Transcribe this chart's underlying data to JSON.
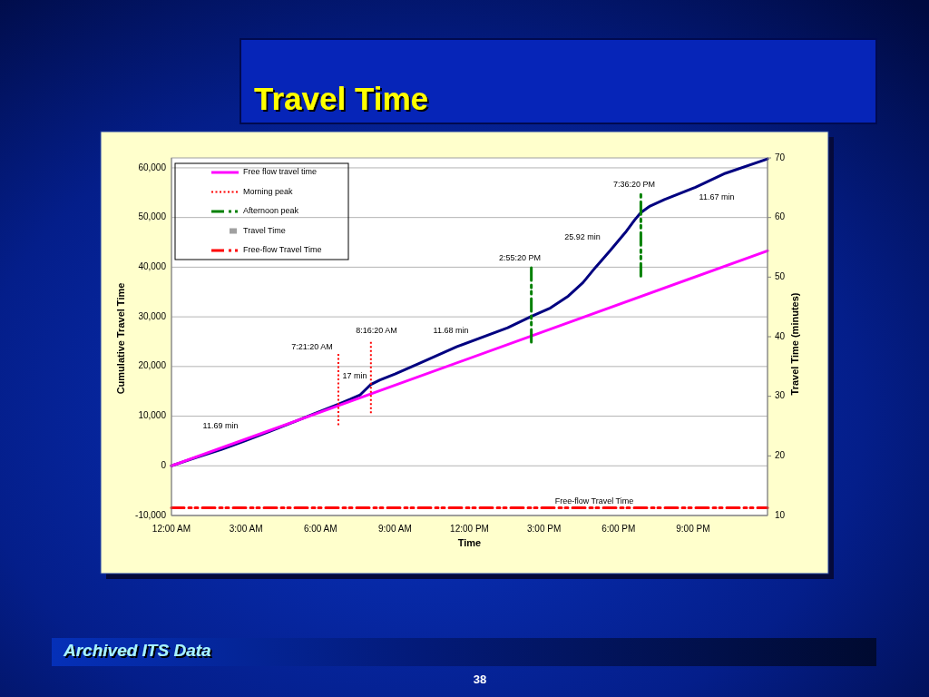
{
  "chart_data": {
    "type": "line",
    "title": "Travel Time",
    "xlabel": "Time",
    "ylabel": "Cumulative Travel Time",
    "y2label": "Travel Time (minutes)",
    "xlim": [
      0,
      24
    ],
    "xticks": [
      {
        "value": 0,
        "label": "12:00 AM"
      },
      {
        "value": 3,
        "label": "3:00 AM"
      },
      {
        "value": 6,
        "label": "6:00 AM"
      },
      {
        "value": 9,
        "label": "9:00 AM"
      },
      {
        "value": 12,
        "label": "12:00 PM"
      },
      {
        "value": 15,
        "label": "3:00 PM"
      },
      {
        "value": 18,
        "label": "6:00 PM"
      },
      {
        "value": 21,
        "label": "9:00 PM"
      }
    ],
    "ylim": [
      -10000,
      62000
    ],
    "yticks": [
      {
        "value": -10000,
        "label": "-10,000"
      },
      0,
      {
        "value": 10000,
        "label": "10,000"
      },
      {
        "value": 20000,
        "label": "20,000"
      },
      {
        "value": 30000,
        "label": "30,000"
      },
      {
        "value": 40000,
        "label": "40,000"
      },
      {
        "value": 50000,
        "label": "50,000"
      },
      {
        "value": 60000,
        "label": "60,000"
      }
    ],
    "y2lim": [
      10,
      70
    ],
    "y2ticks": [
      10,
      20,
      30,
      40,
      50,
      60,
      70
    ],
    "grid": "y",
    "legend": "top left",
    "series": [
      {
        "color": "#000080",
        "line_style": "solid",
        "x": [
          0,
          1,
          2,
          3,
          4,
          5,
          5.7,
          6.72,
          7.2,
          7.6,
          8.03,
          8.4,
          9,
          10,
          11.5,
          13.54,
          14.49,
          15.26,
          15.98,
          16.57,
          17.08,
          17.66,
          18.28,
          18.65,
          18.9,
          19.27,
          19.85,
          21.1,
          22.3,
          24
        ],
        "values": [
          0,
          1700,
          3300,
          5100,
          7000,
          9000,
          10400,
          12400,
          13400,
          14300,
          16400,
          17300,
          18500,
          20700,
          24000,
          27800,
          30100,
          31800,
          34200,
          36900,
          40000,
          43300,
          47000,
          49500,
          51000,
          52300,
          53600,
          56100,
          58900,
          61800
        ]
      },
      {
        "name": "Free flow travel time",
        "color": "#ff00ff",
        "line_style": "solid",
        "x": [
          0,
          24
        ],
        "values": [
          0,
          43300
        ]
      },
      {
        "name": "Morning peak",
        "color": "#ff0000",
        "line_style": "dotted",
        "x": [
          6.72,
          6.72,
          null,
          8.03,
          8.03
        ],
        "values": [
          8200,
          22900,
          null,
          10600,
          25200
        ]
      },
      {
        "name": "Afternoon peak",
        "color": "#008000",
        "line_style": "dashed",
        "x": [
          14.49,
          14.49,
          null,
          18.9,
          18.9
        ],
        "values": [
          24900,
          40200,
          null,
          38200,
          55200
        ]
      },
      {
        "type": "scatter",
        "name": "Travel Time",
        "color": "#a0a0a0",
        "marker": "square",
        "axis": "y2"
      },
      {
        "name": "Free-flow Travel Time",
        "color": "#ff0000",
        "line_style": "dashed",
        "axis": "y2",
        "x": [
          0,
          24
        ],
        "values": [
          11.3,
          11.3
        ]
      }
    ],
    "annotations": [
      "11.69 min",
      "7:21:20 AM",
      "17 min",
      "8:16:20 AM",
      "11.68 min",
      "2:55:20 PM",
      "25.92 min",
      "7:36:20 PM",
      "11.67 min",
      "Free-flow Travel Time",
      "Archived ITS Data",
      "38"
    ]
  }
}
